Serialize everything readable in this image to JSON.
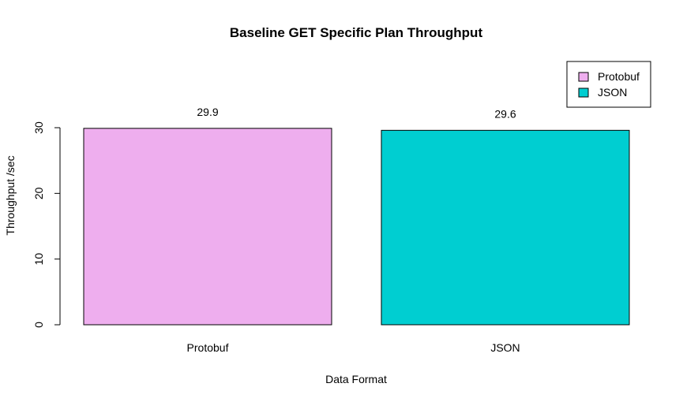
{
  "chart_data": {
    "type": "bar",
    "title": "Baseline GET Specific Plan Throughput",
    "xlabel": "Data Format",
    "ylabel": "Throughput /sec",
    "categories": [
      "Protobuf",
      "JSON"
    ],
    "values": [
      29.9,
      29.6
    ],
    "data_labels": [
      "29.9",
      "29.6"
    ],
    "colors": [
      "#eeaeee",
      "#00ced1"
    ],
    "ylim": [
      0,
      30
    ],
    "yticks": [
      0,
      10,
      20,
      30
    ],
    "ytick_labels": [
      "0",
      "10",
      "20",
      "30"
    ],
    "grid": false,
    "legend": {
      "position": "top-right",
      "entries": [
        "Protobuf",
        "JSON"
      ]
    }
  }
}
